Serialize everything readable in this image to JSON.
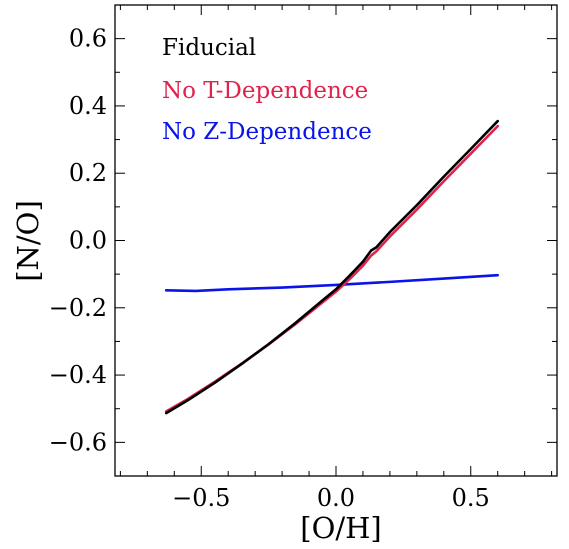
{
  "chart_data": {
    "type": "line",
    "xlabel": "[O/H]",
    "ylabel": "[N/O]",
    "xlim": [
      -0.82,
      0.82
    ],
    "ylim": [
      -0.7,
      0.7
    ],
    "xticks": [
      -0.5,
      0.0,
      0.5
    ],
    "xtick_labels": [
      "−0.5",
      "0.0",
      "0.5"
    ],
    "yticks": [
      -0.6,
      -0.4,
      -0.2,
      0.0,
      0.2,
      0.4,
      0.6
    ],
    "ytick_labels": [
      "−0.6",
      "−0.4",
      "−0.2",
      "0.0",
      "0.2",
      "0.4",
      "0.6"
    ],
    "grid": false,
    "legend_placement": "top-left",
    "series": [
      {
        "name": "Fiducial",
        "color": "#000000",
        "x": [
          -0.63,
          -0.55,
          -0.45,
          -0.35,
          -0.25,
          -0.15,
          -0.05,
          0.0,
          0.05,
          0.1,
          0.13,
          0.15,
          0.2,
          0.3,
          0.4,
          0.5,
          0.6
        ],
        "y": [
          -0.513,
          -0.475,
          -0.423,
          -0.367,
          -0.308,
          -0.245,
          -0.178,
          -0.145,
          -0.105,
          -0.063,
          -0.03,
          -0.02,
          0.025,
          0.105,
          0.19,
          0.272,
          0.355
        ]
      },
      {
        "name": "No T-Dependence",
        "color": "#e0234e",
        "x": [
          -0.63,
          -0.55,
          -0.45,
          -0.35,
          -0.25,
          -0.15,
          -0.05,
          0.0,
          0.05,
          0.1,
          0.13,
          0.15,
          0.2,
          0.3,
          0.4,
          0.5,
          0.6
        ],
        "y": [
          -0.508,
          -0.471,
          -0.42,
          -0.366,
          -0.309,
          -0.248,
          -0.184,
          -0.152,
          -0.115,
          -0.075,
          -0.045,
          -0.032,
          0.012,
          0.092,
          0.176,
          0.258,
          0.34
        ]
      },
      {
        "name": "No Z-Dependence",
        "color": "#0a14e8",
        "x": [
          -0.63,
          -0.52,
          -0.4,
          -0.2,
          0.0,
          0.2,
          0.4,
          0.6
        ],
        "y": [
          -0.148,
          -0.15,
          -0.145,
          -0.14,
          -0.132,
          -0.123,
          -0.113,
          -0.103
        ]
      }
    ]
  }
}
